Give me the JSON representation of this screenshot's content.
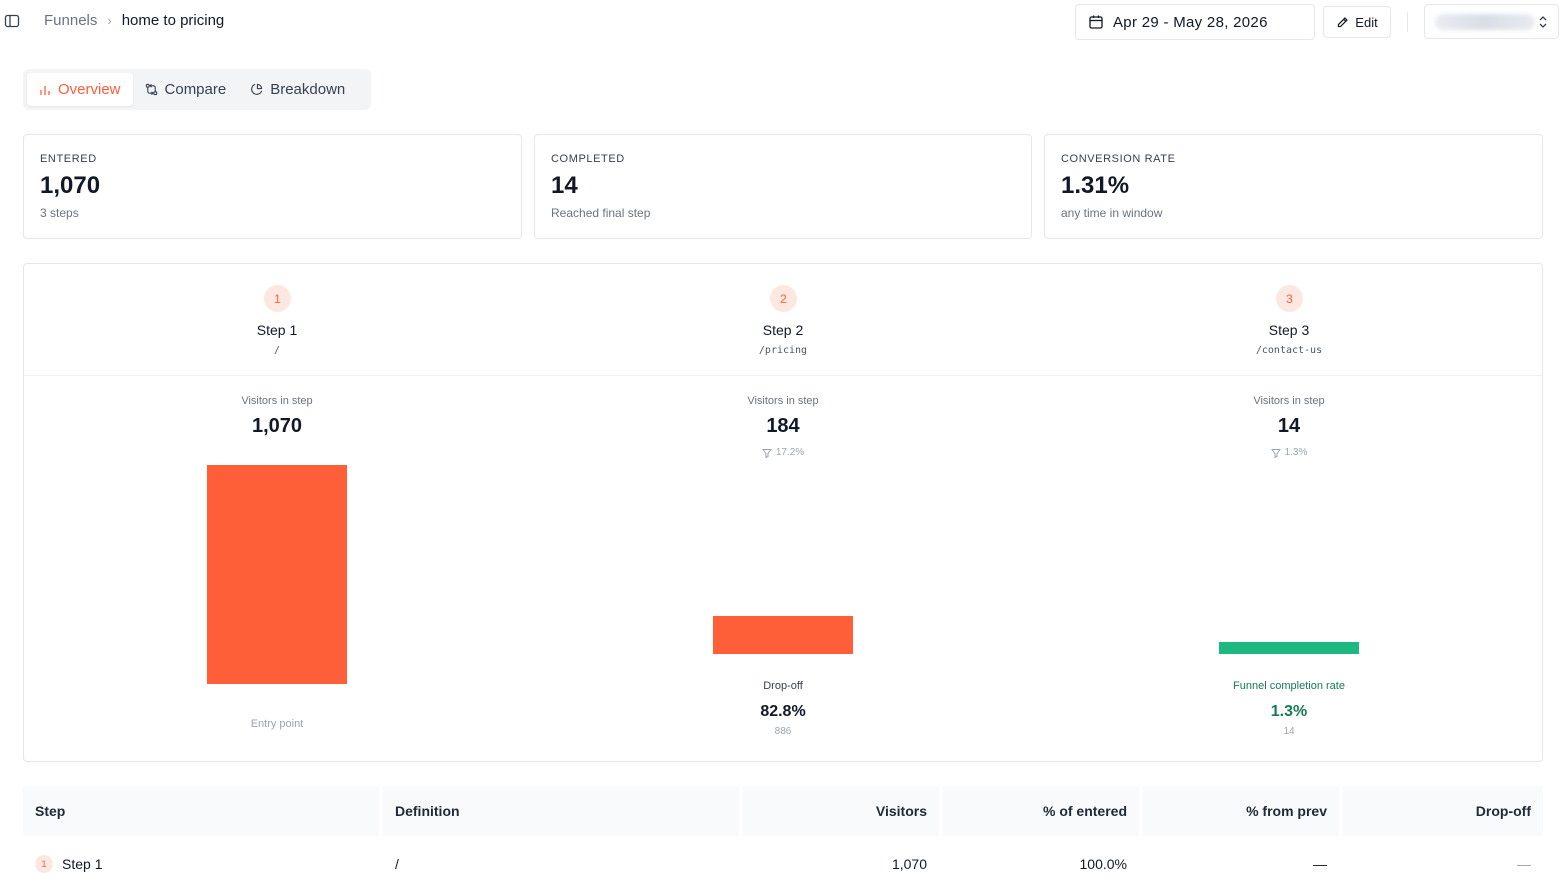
{
  "header": {
    "breadcrumb_parent": "Funnels",
    "breadcrumb_separator": "›",
    "breadcrumb_current": "home to pricing",
    "date_range": "Apr 29 - May 28, 2026",
    "edit_label": "Edit"
  },
  "tabs": [
    {
      "label": "Overview",
      "icon": "bar-chart-icon",
      "active": true
    },
    {
      "label": "Compare",
      "icon": "compare-arrows-icon",
      "active": false
    },
    {
      "label": "Breakdown",
      "icon": "pie-chart-icon",
      "active": false
    }
  ],
  "stats": [
    {
      "label": "ENTERED",
      "value": "1,070",
      "sub": "3 steps"
    },
    {
      "label": "COMPLETED",
      "value": "14",
      "sub": "Reached final step"
    },
    {
      "label": "CONVERSION RATE",
      "value": "1.31%",
      "sub": "any time in window"
    }
  ],
  "funnel": {
    "visitors_label": "Visitors in step",
    "steps": [
      {
        "number": "1",
        "name": "Step 1",
        "path": "/",
        "visitors": "1,070",
        "visitors_count": 1070,
        "conversion": "",
        "footer_label": "Entry point",
        "footer_value": "",
        "footer_sub": ""
      },
      {
        "number": "2",
        "name": "Step 2",
        "path": "/pricing",
        "visitors": "184",
        "visitors_count": 184,
        "conversion": "17.2%",
        "footer_label": "Drop-off",
        "footer_value": "82.8%",
        "footer_sub": "886"
      },
      {
        "number": "3",
        "name": "Step 3",
        "path": "/contact-us",
        "visitors": "14",
        "visitors_count": 14,
        "conversion": "1.3%",
        "footer_label": "Funnel completion rate",
        "footer_value": "1.3%",
        "footer_sub": "14"
      }
    ]
  },
  "table": {
    "headers": [
      "Step",
      "Definition",
      "Visitors",
      "% of entered",
      "% from prev",
      "Drop-off"
    ],
    "rows": [
      {
        "number": "1",
        "step": "Step 1",
        "definition": "/",
        "visitors": "1,070",
        "pct_entered": "100.0%",
        "pct_prev": "—",
        "dropoff": "—"
      }
    ]
  },
  "colors": {
    "accent": "#ff5f38",
    "success": "#1bb980",
    "success_text": "#157a55"
  }
}
